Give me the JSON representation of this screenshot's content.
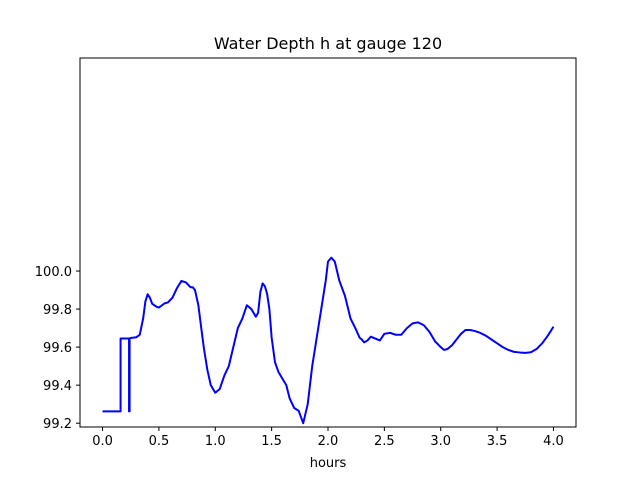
{
  "chart_data": {
    "type": "line",
    "title": "Water Depth h at gauge 120",
    "xlabel": "hours",
    "ylabel": "",
    "xlim": [
      -0.2,
      4.2
    ],
    "ylim": [
      99.18,
      101.12
    ],
    "grid": false,
    "xticks": [
      0.0,
      0.5,
      1.0,
      1.5,
      2.0,
      2.5,
      3.0,
      3.5,
      4.0
    ],
    "xtick_labels": [
      "0.0",
      "0.5",
      "1.0",
      "1.5",
      "2.0",
      "2.5",
      "3.0",
      "3.5",
      "4.0"
    ],
    "yticks": [
      99.2,
      99.4,
      99.6,
      99.8,
      100.0
    ],
    "ytick_labels": [
      "99.2",
      "99.4",
      "99.6",
      "99.8",
      "100.0"
    ],
    "series": [
      {
        "color": "#0000ff",
        "x": [
          0.0,
          0.16,
          0.16,
          0.235,
          0.235,
          0.24,
          0.24,
          0.25,
          0.3,
          0.33,
          0.36,
          0.38,
          0.4,
          0.42,
          0.44,
          0.46,
          0.48,
          0.5,
          0.55,
          0.58,
          0.62,
          0.66,
          0.7,
          0.74,
          0.78,
          0.8,
          0.82,
          0.85,
          0.88,
          0.9,
          0.93,
          0.96,
          1.0,
          1.04,
          1.08,
          1.12,
          1.16,
          1.2,
          1.24,
          1.28,
          1.32,
          1.36,
          1.38,
          1.4,
          1.42,
          1.44,
          1.46,
          1.48,
          1.5,
          1.53,
          1.56,
          1.6,
          1.63,
          1.66,
          1.7,
          1.74,
          1.78,
          1.82,
          1.86,
          1.9,
          1.94,
          1.98,
          2.0,
          2.03,
          2.06,
          2.1,
          2.15,
          2.2,
          2.25,
          2.28,
          2.3,
          2.32,
          2.35,
          2.38,
          2.42,
          2.46,
          2.5,
          2.55,
          2.6,
          2.65,
          2.7,
          2.75,
          2.8,
          2.85,
          2.9,
          2.95,
          3.0,
          3.03,
          3.06,
          3.1,
          3.14,
          3.18,
          3.22,
          3.26,
          3.3,
          3.35,
          3.4,
          3.45,
          3.5,
          3.55,
          3.6,
          3.65,
          3.7,
          3.75,
          3.8,
          3.85,
          3.9,
          3.95,
          4.0
        ],
        "y": [
          99.262,
          99.262,
          99.645,
          99.645,
          99.262,
          99.262,
          99.645,
          99.648,
          99.652,
          99.665,
          99.75,
          99.84,
          99.878,
          99.86,
          99.828,
          99.82,
          99.812,
          99.808,
          99.83,
          99.835,
          99.86,
          99.91,
          99.948,
          99.94,
          99.915,
          99.915,
          99.9,
          99.82,
          99.68,
          99.59,
          99.48,
          99.4,
          99.36,
          99.38,
          99.45,
          99.5,
          99.6,
          99.7,
          99.75,
          99.82,
          99.8,
          99.76,
          99.78,
          99.89,
          99.935,
          99.92,
          99.88,
          99.8,
          99.65,
          99.52,
          99.47,
          99.43,
          99.4,
          99.33,
          99.28,
          99.265,
          99.2,
          99.3,
          99.5,
          99.65,
          99.8,
          99.95,
          100.05,
          100.07,
          100.05,
          99.95,
          99.87,
          99.75,
          99.69,
          99.65,
          99.64,
          99.625,
          99.635,
          99.655,
          99.645,
          99.635,
          99.67,
          99.675,
          99.665,
          99.665,
          99.7,
          99.725,
          99.73,
          99.715,
          99.68,
          99.63,
          99.6,
          99.585,
          99.59,
          99.61,
          99.64,
          99.67,
          99.69,
          99.69,
          99.685,
          99.675,
          99.66,
          99.64,
          99.62,
          99.6,
          99.585,
          99.575,
          99.572,
          99.57,
          99.573,
          99.59,
          99.62,
          99.66,
          99.707
        ]
      }
    ]
  }
}
